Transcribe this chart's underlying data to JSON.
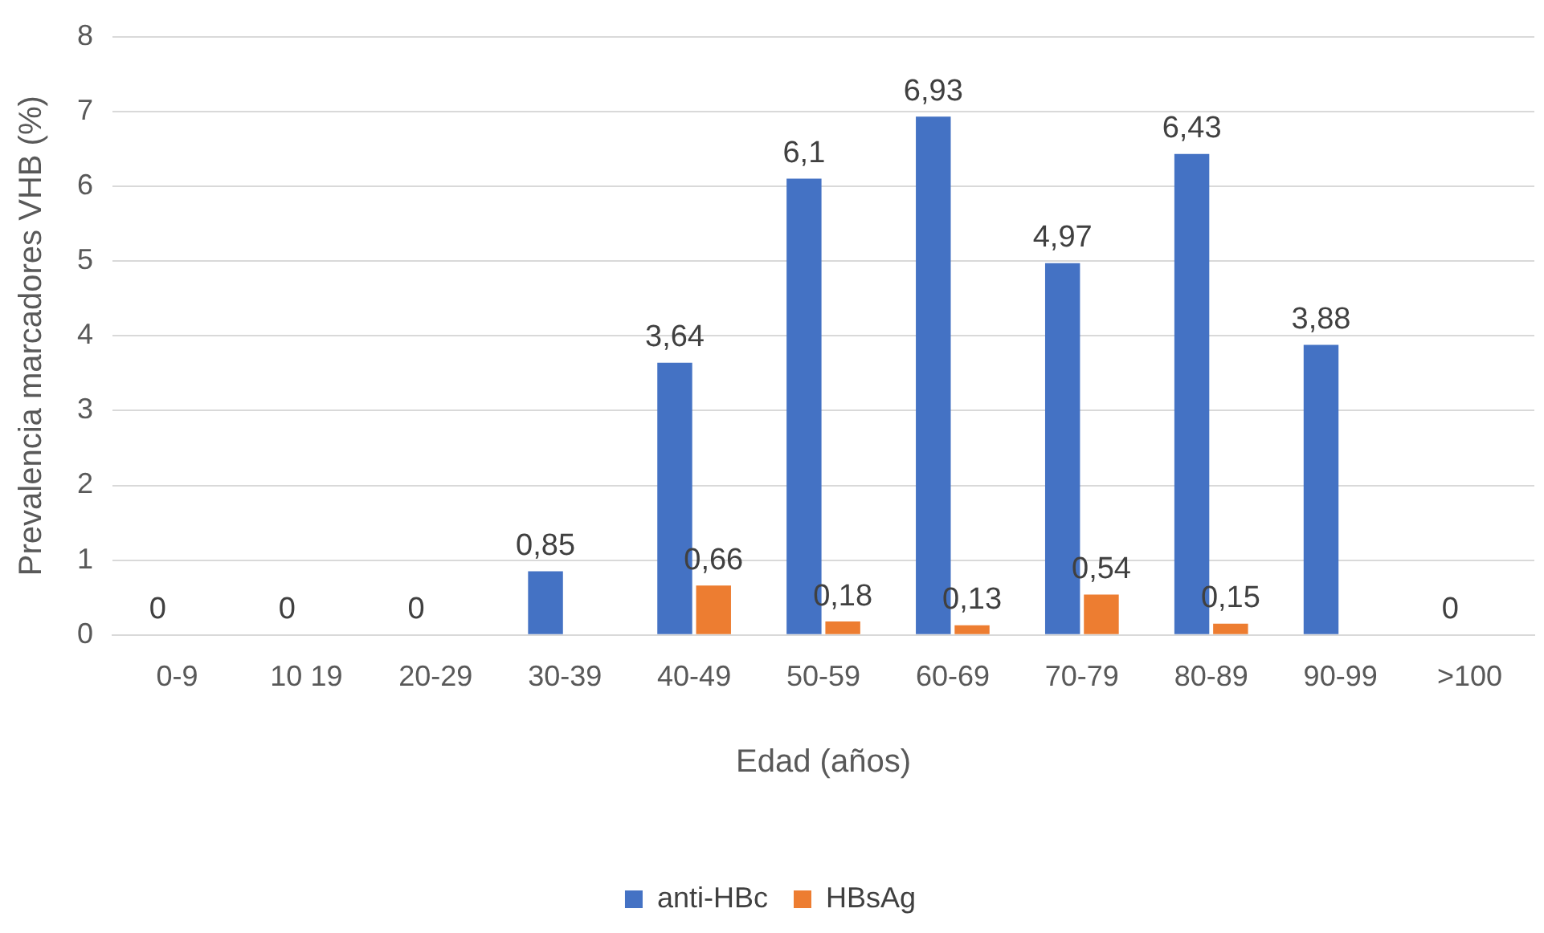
{
  "chart_data": {
    "type": "bar",
    "xlabel": "Edad (años)",
    "ylabel": "Prevalencia marcadores VHB (%)",
    "categories": [
      "0-9",
      "10 19",
      "20-29",
      "30-39",
      "40-49",
      "50-59",
      "60-69",
      "70-79",
      "80-89",
      "90-99",
      ">100"
    ],
    "series": [
      {
        "name": "anti-HBc",
        "color": "#4472c4",
        "values": [
          0,
          0,
          0,
          0.85,
          3.64,
          6.1,
          6.93,
          4.97,
          6.43,
          3.88,
          0
        ],
        "value_labels": [
          "0",
          "0",
          "0",
          "0,85",
          "3,64",
          "6,1",
          "6,93",
          "4,97",
          "6,43",
          "3,88",
          "0"
        ]
      },
      {
        "name": "HBsAg",
        "color": "#ed7d31",
        "values": [
          0,
          0,
          0,
          0,
          0.66,
          0.18,
          0.13,
          0.54,
          0.15,
          0,
          0
        ],
        "value_labels": [
          null,
          null,
          null,
          null,
          "0,66",
          "0,18",
          "0,13",
          "0,54",
          "0,15",
          null,
          null
        ]
      }
    ],
    "ylim": [
      0,
      8
    ],
    "yticks": [
      0,
      1,
      2,
      3,
      4,
      5,
      6,
      7,
      8
    ],
    "grid": "y",
    "legend": "bottom"
  }
}
